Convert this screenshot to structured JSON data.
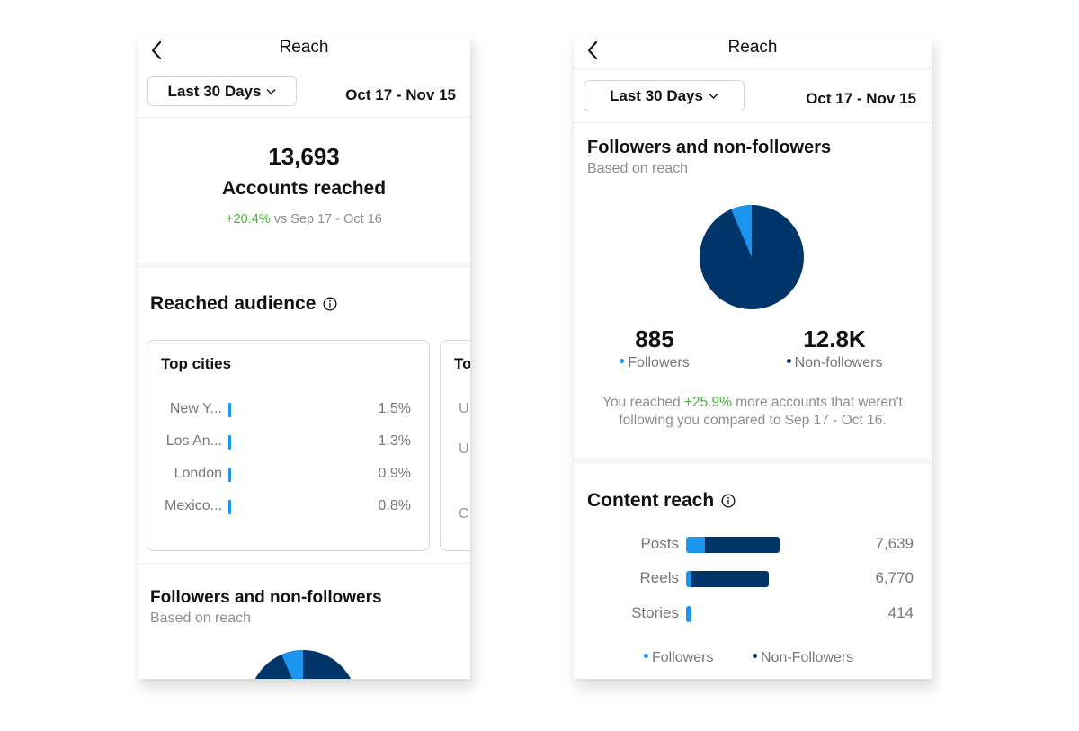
{
  "colors": {
    "followers": "#1b95f0",
    "non_followers": "#003569",
    "positive": "#44b833"
  },
  "left": {
    "nav": {
      "title": "Reach",
      "back_icon": "chevron-left-icon"
    },
    "date_selector": {
      "label": "Last 30 Days",
      "range": "Oct 17 - Nov 15"
    },
    "summary": {
      "value": "13,693",
      "label": "Accounts reached",
      "change": "+20.4%",
      "comparison": "vs Sep 17 - Oct 16"
    },
    "audience": {
      "title": "Reached audience",
      "info_icon": "info-icon",
      "top_cities": {
        "title": "Top cities",
        "rows": [
          {
            "name": "New Y...",
            "pct": "1.5%"
          },
          {
            "name": "Los An...",
            "pct": "1.3%"
          },
          {
            "name": "London",
            "pct": "0.9%"
          },
          {
            "name": "Mexico...",
            "pct": "0.8%"
          }
        ]
      },
      "next_card": {
        "title_peek": "To",
        "rows_peek": [
          "U",
          "U",
          "C"
        ]
      }
    },
    "followers_section": {
      "title": "Followers and non-followers",
      "subtitle": "Based on reach",
      "followers_share": 0.065
    }
  },
  "right": {
    "nav": {
      "title": "Reach",
      "back_icon": "chevron-left-icon"
    },
    "date_selector": {
      "label": "Last 30 Days",
      "range": "Oct 17 - Nov 15"
    },
    "followers_section": {
      "title": "Followers and non-followers",
      "subtitle": "Based on reach",
      "followers_share": 0.065,
      "followers_value": "885",
      "followers_label": "Followers",
      "non_followers_value": "12.8K",
      "non_followers_label": "Non-followers",
      "note_prefix": "You reached",
      "note_change": "+25.9%",
      "note_line1_suffix": "more accounts that weren't",
      "note_line2": "following you compared to Sep 17 - Oct 16."
    },
    "content_reach": {
      "title": "Content reach",
      "info_icon": "info-icon",
      "max_total": 7639,
      "rows": [
        {
          "label": "Posts",
          "value": "7,639",
          "total": 7639,
          "followers_share": 0.2
        },
        {
          "label": "Reels",
          "value": "6,770",
          "total": 6770,
          "followers_share": 0.07
        },
        {
          "label": "Stories",
          "value": "414",
          "total": 414,
          "followers_share": 1.0
        }
      ],
      "legend": {
        "followers": "Followers",
        "non_followers": "Non-Followers"
      }
    }
  }
}
